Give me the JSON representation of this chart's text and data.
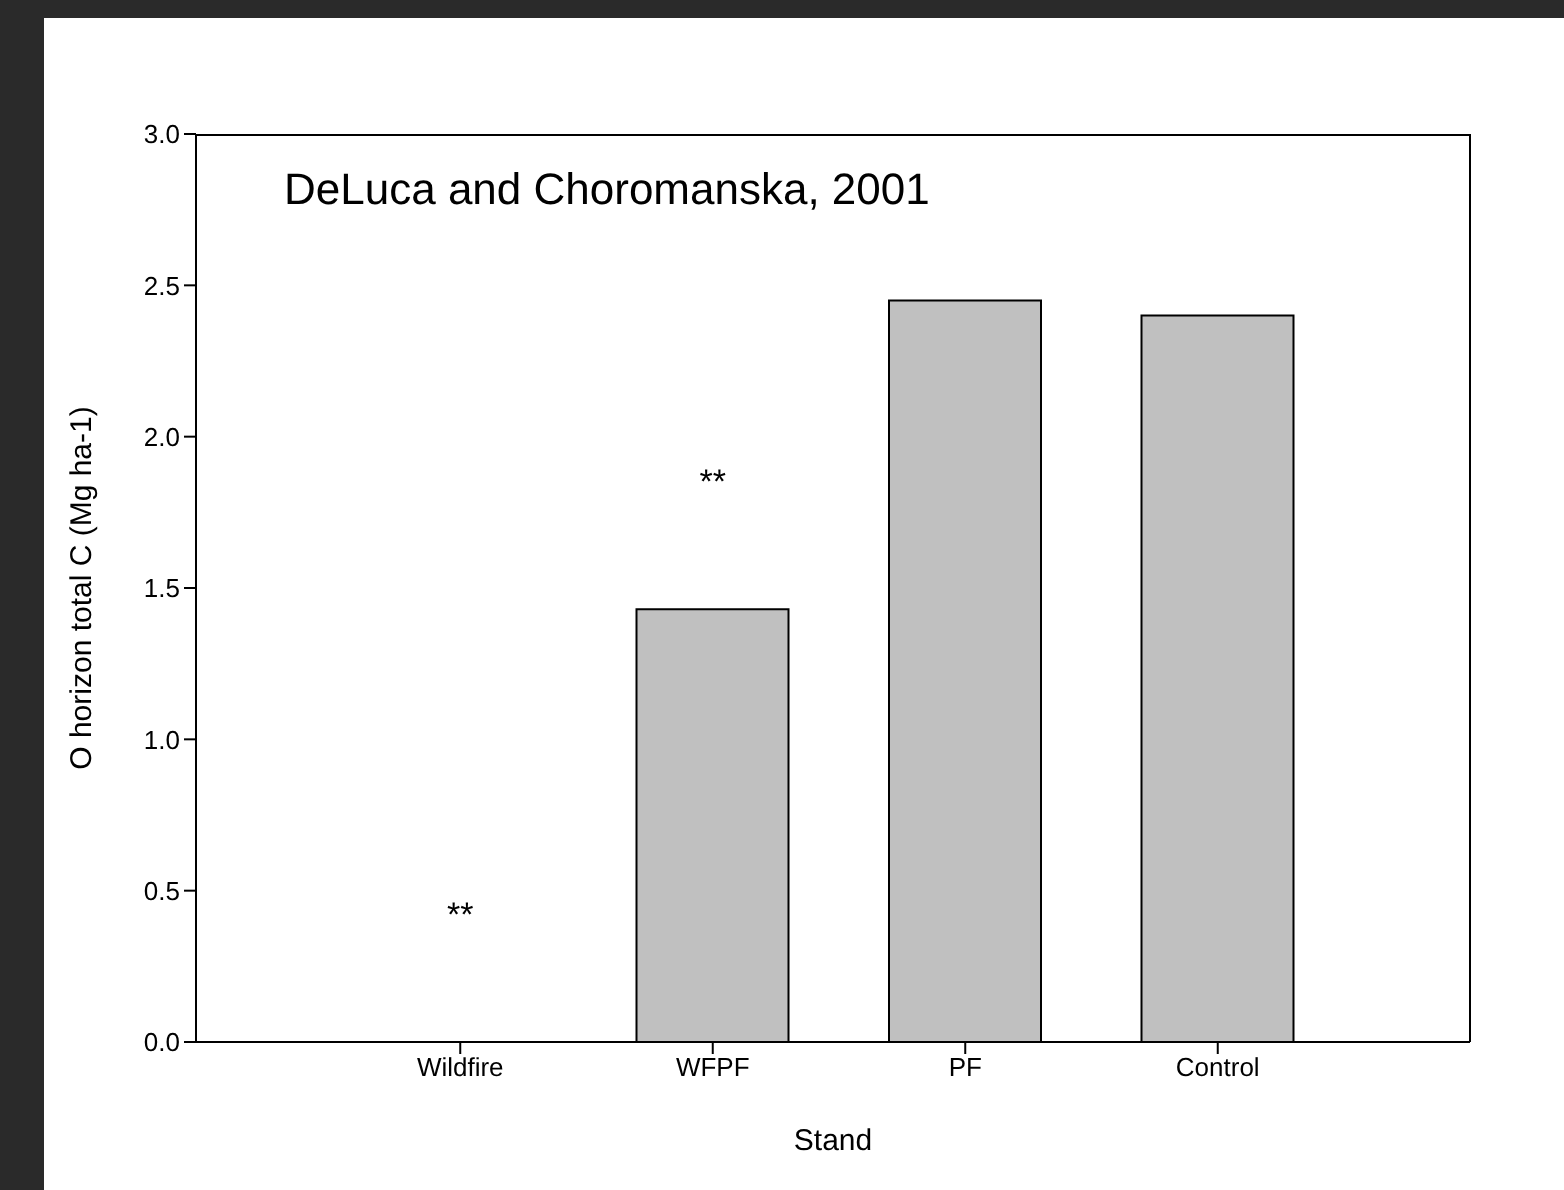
{
  "chart_data": {
    "type": "bar",
    "title": "DeLuca and Choromanska, 2001",
    "xlabel": "Stand",
    "ylabel": "O horizon total C (Mg ha-1)",
    "categories": [
      "Wildfire",
      "WFPF",
      "PF",
      "Control"
    ],
    "values": [
      0,
      1.43,
      2.45,
      2.4
    ],
    "color": "#c0c0c0",
    "ylim": [
      0,
      3
    ],
    "yticks": [
      {
        "value": 0,
        "label": "0.0"
      },
      {
        "value": 0.5,
        "label": "0.5"
      },
      {
        "value": 1,
        "label": "1.0"
      },
      {
        "value": 1.5,
        "label": "1.5"
      },
      {
        "value": 2,
        "label": "2.0"
      },
      {
        "value": 2.5,
        "label": "2.5"
      },
      {
        "value": 3,
        "label": "3.0"
      }
    ],
    "annotations": [
      "**",
      "**"
    ],
    "grid": false,
    "legend": false
  }
}
